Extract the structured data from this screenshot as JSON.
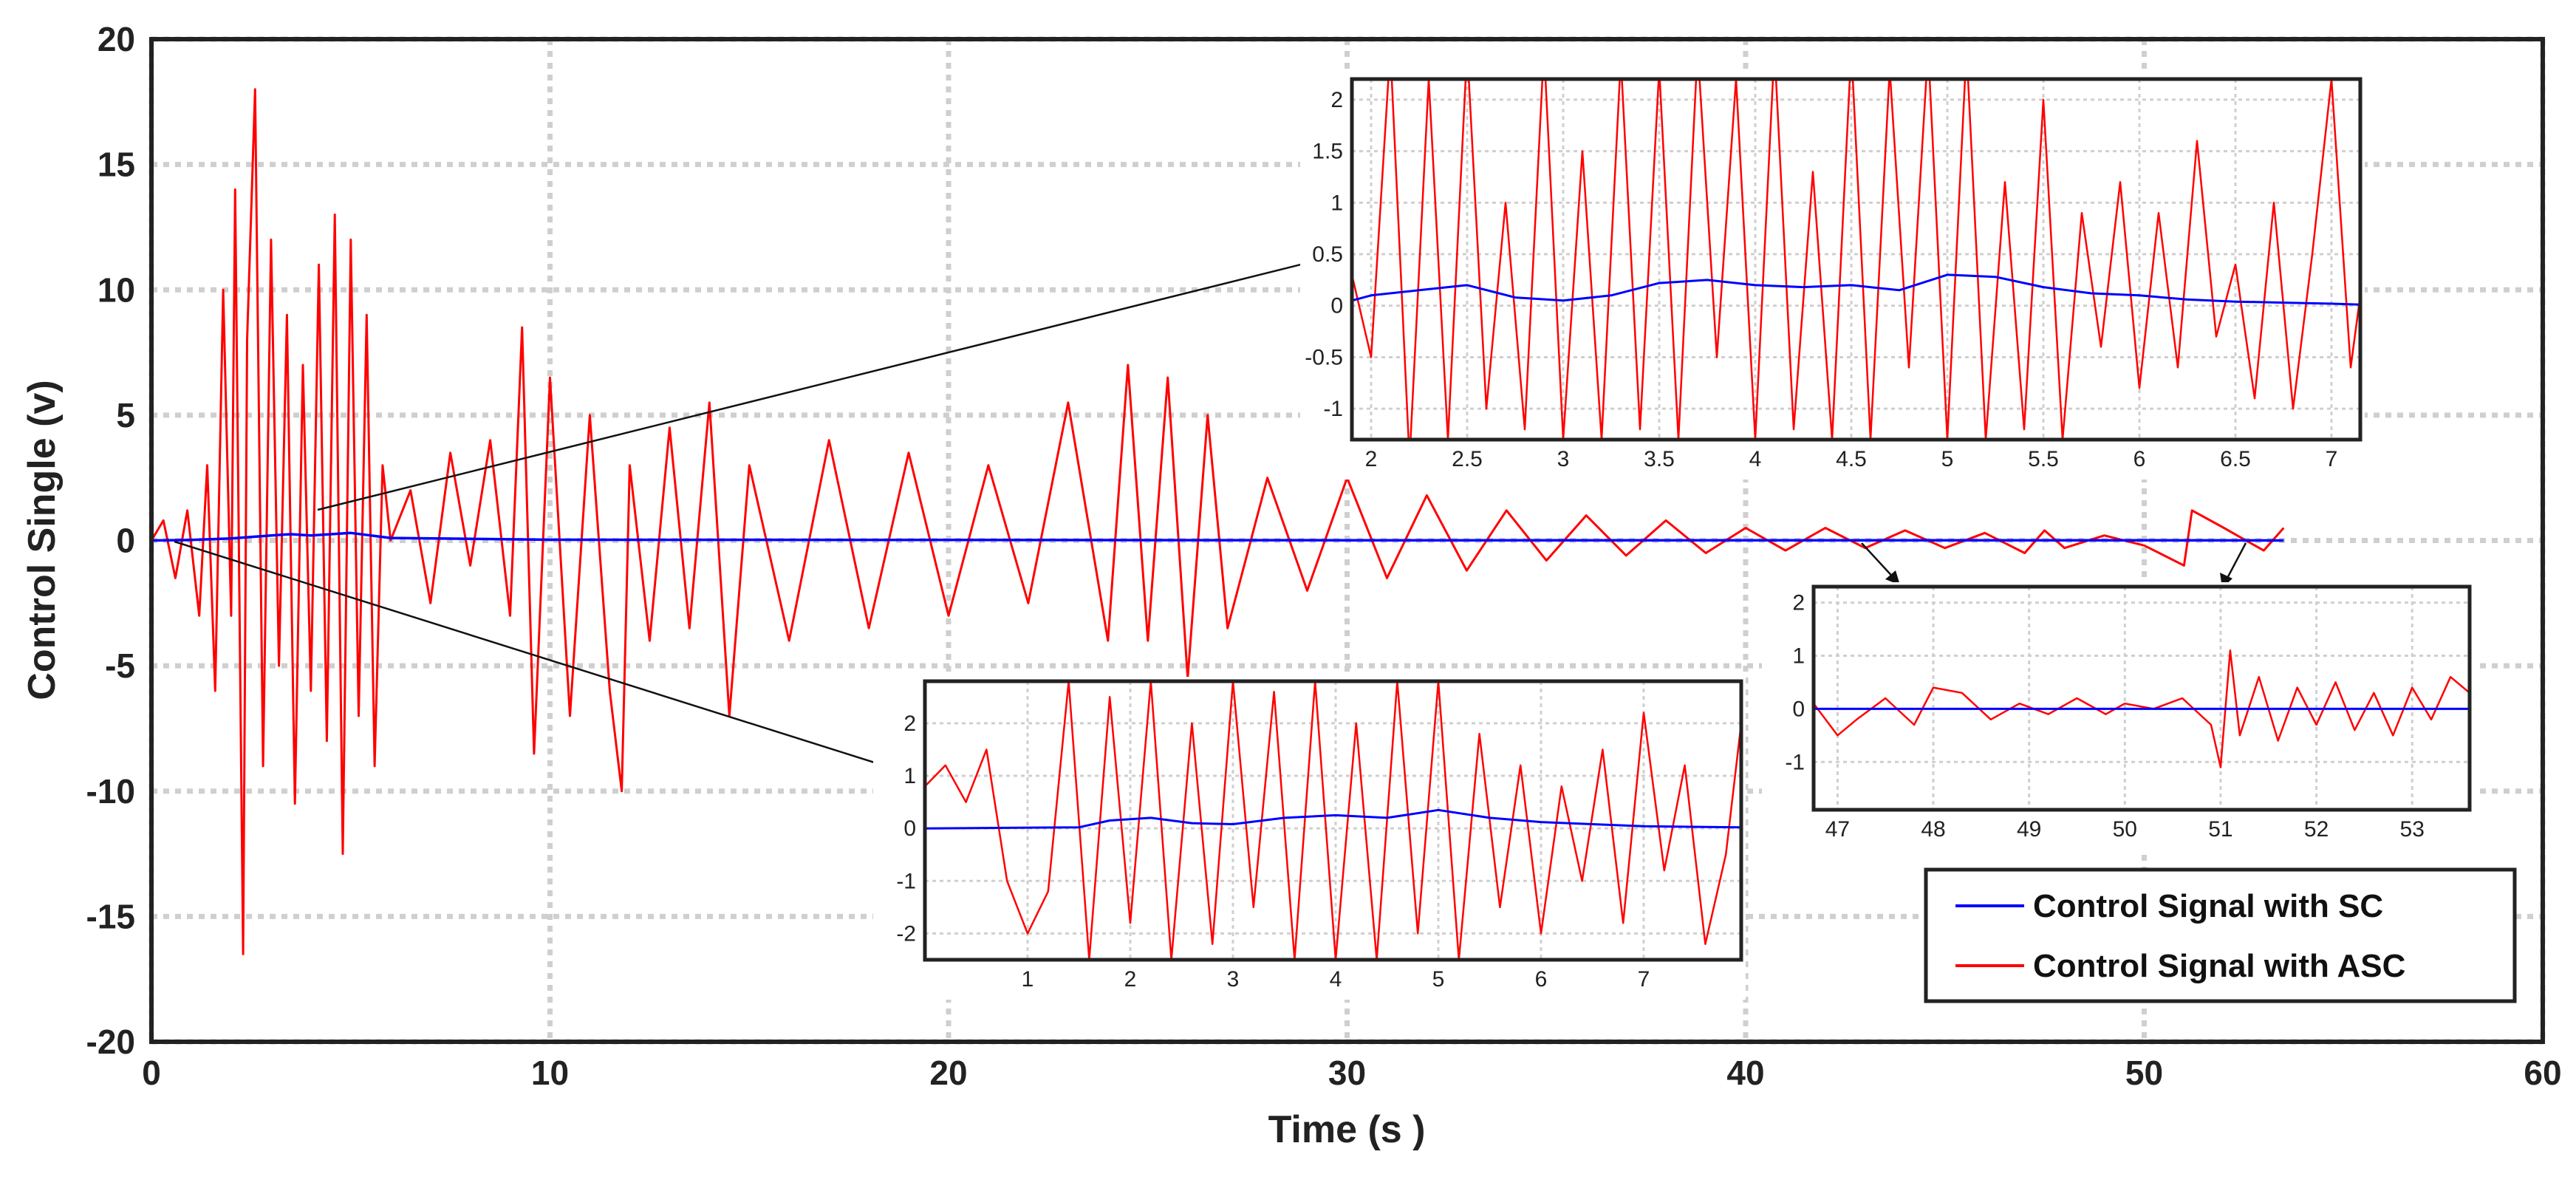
{
  "colors": {
    "sc": "#0000ff",
    "asc": "#ff0000",
    "grid": "#cfcfcf",
    "axis": "#222222"
  },
  "chart_data": [
    {
      "id": "main",
      "type": "line",
      "title": "",
      "xlabel": "Time (s )",
      "ylabel": "Control  Single (v)",
      "xlim": [
        0,
        60
      ],
      "ylim": [
        -20,
        20
      ],
      "xticks": [
        0,
        10,
        20,
        30,
        40,
        50,
        60
      ],
      "yticks": [
        -20,
        -15,
        -10,
        -5,
        0,
        5,
        10,
        15,
        20
      ],
      "grid": true,
      "legend": "bottom-right",
      "series": [
        {
          "name": "Control Signal with SC",
          "color": "#0000ff",
          "x": [
            0,
            1,
            2,
            3,
            3.5,
            4,
            4.5,
            5,
            5.5,
            6,
            10,
            20,
            30,
            40,
            50,
            53.5
          ],
          "y": [
            0,
            0.02,
            0.08,
            0.2,
            0.25,
            0.2,
            0.25,
            0.3,
            0.2,
            0.1,
            0.03,
            0.02,
            0.01,
            0.01,
            0.01,
            0
          ]
        },
        {
          "name": "Control Signal with ASC",
          "color": "#ff0000",
          "x": [
            0,
            0.3,
            0.6,
            0.9,
            1.2,
            1.4,
            1.6,
            1.8,
            2.0,
            2.1,
            2.3,
            2.4,
            2.6,
            2.8,
            3.0,
            3.2,
            3.4,
            3.6,
            3.8,
            4.0,
            4.2,
            4.4,
            4.6,
            4.8,
            5.0,
            5.2,
            5.4,
            5.6,
            5.8,
            6.0,
            6.5,
            7.0,
            7.5,
            8.0,
            8.5,
            9.0,
            9.3,
            9.6,
            10.0,
            10.5,
            11.0,
            11.5,
            11.8,
            12.0,
            12.5,
            13.0,
            13.5,
            14.0,
            14.5,
            15.0,
            16.0,
            17.0,
            18.0,
            19.0,
            20.0,
            21.0,
            22.0,
            23.0,
            24.0,
            24.5,
            25.0,
            25.5,
            26.0,
            26.5,
            27.0,
            28.0,
            29.0,
            30.0,
            31.0,
            32.0,
            33.0,
            34.0,
            35.0,
            36.0,
            37.0,
            38.0,
            39.0,
            40.0,
            41.0,
            42.0,
            43.0,
            44.0,
            45.0,
            46.0,
            47.0,
            47.5,
            48.0,
            49.0,
            50.0,
            51.0,
            51.2,
            52.0,
            53.0,
            53.5
          ],
          "y": [
            0,
            0.8,
            -1.5,
            1.2,
            -3,
            3,
            -6,
            10,
            -3,
            14,
            -16.5,
            8,
            18,
            -9,
            12,
            -5,
            9,
            -10.5,
            7,
            -6,
            11,
            -8,
            13,
            -12.5,
            12,
            -7,
            9,
            -9,
            3,
            0,
            2,
            -2.5,
            3.5,
            -1,
            4,
            -3,
            8.5,
            -8.5,
            6.5,
            -7,
            5,
            -6,
            -10,
            3,
            -4,
            4.5,
            -3.5,
            5.5,
            -7,
            3,
            -4,
            4,
            -3.5,
            3.5,
            -3,
            3,
            -2.5,
            5.5,
            -4,
            7,
            -4,
            6.5,
            -5.5,
            5,
            -3.5,
            2.5,
            -2,
            2.5,
            -1.5,
            1.8,
            -1.2,
            1.2,
            -0.8,
            1,
            -0.6,
            0.8,
            -0.5,
            0.5,
            -0.4,
            0.5,
            -0.3,
            0.4,
            -0.3,
            0.3,
            -0.5,
            0.4,
            -0.3,
            0.2,
            -0.2,
            -1.0,
            1.2,
            0.5,
            -0.4,
            0.5
          ]
        }
      ]
    },
    {
      "id": "inset-top",
      "type": "line",
      "xlim": [
        1.9,
        7.15
      ],
      "ylim": [
        -1.3,
        2.2
      ],
      "xticks": [
        2,
        2.5,
        3,
        3.5,
        4,
        4.5,
        5,
        5.5,
        6,
        6.5,
        7
      ],
      "yticks": [
        -1,
        -0.5,
        0,
        0.5,
        1,
        1.5,
        2
      ],
      "grid": true,
      "series": [
        {
          "name": "Control Signal with SC",
          "color": "#0000ff",
          "x": [
            1.9,
            2.0,
            2.25,
            2.5,
            2.75,
            3.0,
            3.25,
            3.5,
            3.75,
            4.0,
            4.25,
            4.5,
            4.75,
            5.0,
            5.25,
            5.5,
            5.75,
            6.0,
            6.25,
            6.5,
            6.75,
            7.0,
            7.15
          ],
          "y": [
            0.05,
            0.1,
            0.15,
            0.2,
            0.08,
            0.05,
            0.1,
            0.22,
            0.25,
            0.2,
            0.18,
            0.2,
            0.15,
            0.3,
            0.28,
            0.18,
            0.12,
            0.1,
            0.06,
            0.04,
            0.03,
            0.02,
            0.01
          ]
        },
        {
          "name": "Control Signal with ASC",
          "color": "#ff0000",
          "x": [
            1.9,
            2.0,
            2.1,
            2.2,
            2.3,
            2.4,
            2.5,
            2.6,
            2.7,
            2.8,
            2.9,
            3.0,
            3.1,
            3.2,
            3.3,
            3.4,
            3.5,
            3.6,
            3.7,
            3.8,
            3.9,
            4.0,
            4.1,
            4.2,
            4.3,
            4.4,
            4.5,
            4.6,
            4.7,
            4.8,
            4.9,
            5.0,
            5.1,
            5.2,
            5.3,
            5.4,
            5.5,
            5.6,
            5.7,
            5.8,
            5.9,
            6.0,
            6.1,
            6.2,
            6.3,
            6.4,
            6.5,
            6.6,
            6.7,
            6.8,
            6.9,
            7.0,
            7.1,
            7.15
          ],
          "y": [
            0.3,
            -0.5,
            2.5,
            -1.5,
            2.2,
            -1.3,
            2.5,
            -1.0,
            1.0,
            -1.2,
            2.5,
            -1.3,
            1.5,
            -1.3,
            2.4,
            -1.2,
            2.3,
            -1.3,
            2.5,
            -0.5,
            2.2,
            -1.3,
            2.5,
            -1.2,
            1.3,
            -1.3,
            2.5,
            -1.3,
            2.3,
            -0.6,
            2.5,
            -1.3,
            2.5,
            -1.3,
            1.2,
            -1.2,
            2.0,
            -1.3,
            0.9,
            -0.4,
            1.2,
            -0.8,
            0.9,
            -0.6,
            1.6,
            -0.3,
            0.4,
            -0.9,
            1.0,
            -1.0,
            0.5,
            2.2,
            -0.6,
            0.1
          ]
        }
      ]
    },
    {
      "id": "inset-bottom",
      "type": "line",
      "xlim": [
        0.0,
        7.95
      ],
      "ylim": [
        -2.5,
        2.8
      ],
      "xticks": [
        1,
        2,
        3,
        4,
        5,
        6,
        7
      ],
      "yticks": [
        -2,
        -1,
        0,
        1,
        2
      ],
      "grid": true,
      "series": [
        {
          "name": "Control Signal with SC",
          "color": "#0000ff",
          "x": [
            0,
            1.5,
            1.8,
            2.2,
            2.6,
            3.0,
            3.5,
            4.0,
            4.5,
            5.0,
            5.5,
            6.0,
            6.5,
            7.0,
            7.95
          ],
          "y": [
            0,
            0.02,
            0.15,
            0.2,
            0.1,
            0.08,
            0.2,
            0.25,
            0.2,
            0.35,
            0.2,
            0.12,
            0.08,
            0.04,
            0.02
          ]
        },
        {
          "name": "Control Signal with ASC",
          "color": "#ff0000",
          "x": [
            0,
            0.2,
            0.4,
            0.6,
            0.8,
            1.0,
            1.2,
            1.4,
            1.6,
            1.8,
            2.0,
            2.2,
            2.4,
            2.6,
            2.8,
            3.0,
            3.2,
            3.4,
            3.6,
            3.8,
            4.0,
            4.2,
            4.4,
            4.6,
            4.8,
            5.0,
            5.2,
            5.4,
            5.6,
            5.8,
            6.0,
            6.2,
            6.4,
            6.6,
            6.8,
            7.0,
            7.2,
            7.4,
            7.6,
            7.8,
            7.95
          ],
          "y": [
            0.8,
            1.2,
            0.5,
            1.5,
            -1.0,
            -2.0,
            -1.2,
            2.8,
            -2.5,
            2.5,
            -1.8,
            2.8,
            -2.5,
            2.0,
            -2.2,
            2.8,
            -1.5,
            2.6,
            -2.5,
            2.8,
            -2.5,
            2.0,
            -2.5,
            2.8,
            -2.0,
            2.8,
            -2.5,
            1.8,
            -1.5,
            1.2,
            -2.0,
            0.8,
            -1.0,
            1.5,
            -1.8,
            2.2,
            -0.8,
            1.2,
            -2.2,
            -0.5,
            2.0
          ]
        }
      ]
    },
    {
      "id": "inset-right",
      "type": "line",
      "xlim": [
        46.75,
        53.6
      ],
      "ylim": [
        -1.9,
        2.3
      ],
      "xticks": [
        47,
        48,
        49,
        50,
        51,
        52,
        53
      ],
      "yticks": [
        -1,
        0,
        1,
        2
      ],
      "grid": true,
      "series": [
        {
          "name": "Control Signal with SC",
          "color": "#0000ff",
          "x": [
            46.75,
            53.6
          ],
          "y": [
            0,
            0
          ]
        },
        {
          "name": "Control Signal with ASC",
          "color": "#ff0000",
          "x": [
            46.75,
            47.0,
            47.2,
            47.5,
            47.8,
            48.0,
            48.3,
            48.6,
            48.9,
            49.2,
            49.5,
            49.8,
            50.0,
            50.3,
            50.6,
            50.9,
            51.0,
            51.1,
            51.2,
            51.4,
            51.6,
            51.8,
            52.0,
            52.2,
            52.4,
            52.6,
            52.8,
            53.0,
            53.2,
            53.4,
            53.6
          ],
          "y": [
            0.1,
            -0.5,
            -0.2,
            0.2,
            -0.3,
            0.4,
            0.3,
            -0.2,
            0.1,
            -0.1,
            0.2,
            -0.1,
            0.1,
            0.0,
            0.2,
            -0.3,
            -1.1,
            1.1,
            -0.5,
            0.6,
            -0.6,
            0.4,
            -0.3,
            0.5,
            -0.4,
            0.3,
            -0.5,
            0.4,
            -0.2,
            0.6,
            0.3
          ]
        }
      ]
    }
  ],
  "legend": {
    "items": [
      {
        "label": "Control Signal with SC",
        "color": "#0000ff"
      },
      {
        "label": "Control Signal with ASC",
        "color": "#ff0000"
      }
    ]
  }
}
